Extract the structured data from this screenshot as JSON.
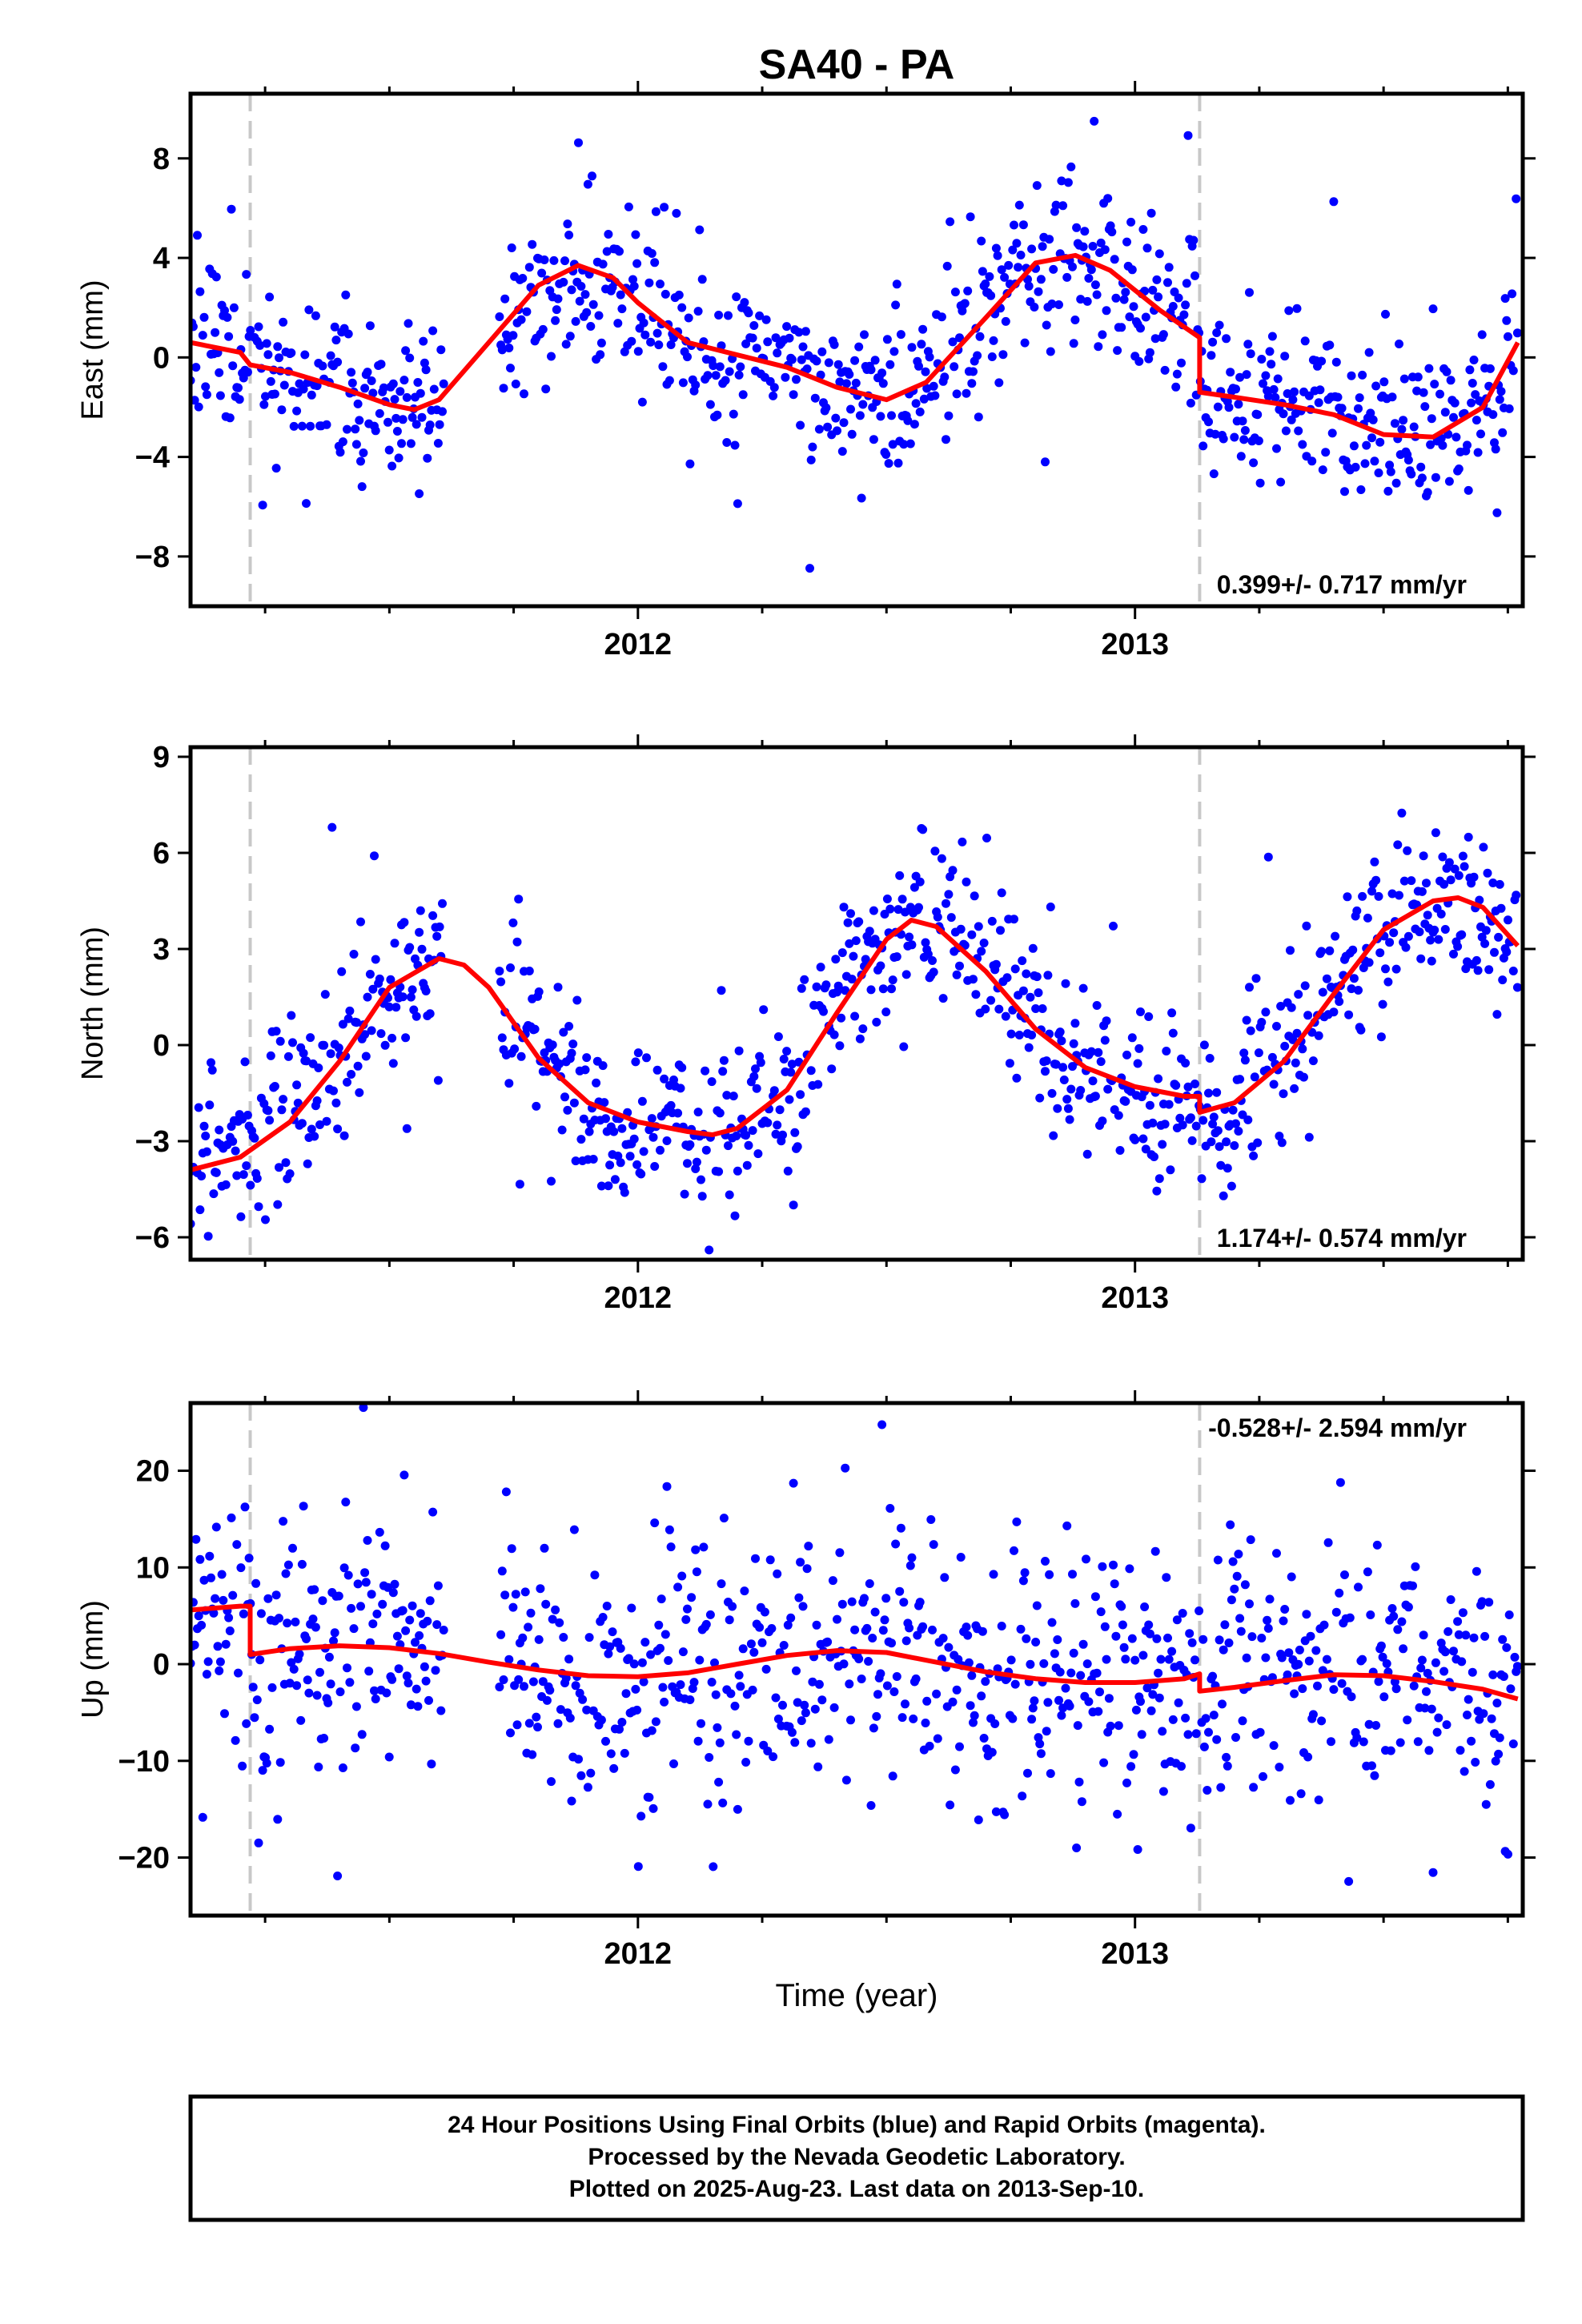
{
  "chart_data": {
    "title": "SA40 - PA",
    "type": "scatter",
    "xlabel": "Time (year)",
    "x_ticks": [
      "2012",
      "2013"
    ],
    "xlim": [
      2011.1,
      2013.78
    ],
    "discontinuities": [
      2011.22,
      2013.13
    ],
    "colors": {
      "data": "#0000ff",
      "model": "#ff0000",
      "discontinuity": "#c8c8c8",
      "frame": "#000000"
    },
    "panels": [
      {
        "ylabel": "East (mm)",
        "ylim": [
          -10,
          10.6
        ],
        "yticks": [
          "8",
          "4",
          "0",
          "−4",
          "−8"
        ],
        "ytick_values": [
          8,
          4,
          0,
          -4,
          -8
        ],
        "rate_text": "0.399+/- 0.717 mm/yr",
        "rate_position": "bottom-right",
        "model": {
          "x": [
            2011.1,
            2011.2,
            2011.22,
            2011.3,
            2011.4,
            2011.5,
            2011.55,
            2011.6,
            2011.7,
            2011.8,
            2011.88,
            2011.95,
            2012.0,
            2012.1,
            2012.2,
            2012.3,
            2012.4,
            2012.5,
            2012.58,
            2012.7,
            2012.8,
            2012.88,
            2012.95,
            2013.05,
            2013.13,
            2013.13,
            2013.2,
            2013.3,
            2013.4,
            2013.5,
            2013.6,
            2013.7,
            2013.77
          ],
          "y": [
            0.6,
            0.2,
            -0.3,
            -0.6,
            -1.2,
            -1.9,
            -2.1,
            -1.7,
            0.6,
            2.9,
            3.7,
            3.2,
            2.2,
            0.6,
            0.1,
            -0.4,
            -1.2,
            -1.7,
            -1.0,
            1.6,
            3.8,
            4.1,
            3.5,
            1.9,
            0.8,
            -1.4,
            -1.6,
            -1.9,
            -2.3,
            -3.1,
            -3.2,
            -2.0,
            0.6
          ]
        },
        "scatter": {
          "seed": 11,
          "noise": 1.6,
          "outlier_rate": 0.05,
          "outlier_scale": 2.4
        }
      },
      {
        "ylabel": "North (mm)",
        "ylim": [
          -6.7,
          9.3
        ],
        "yticks": [
          "9",
          "6",
          "3",
          "0",
          "−3",
          "−6"
        ],
        "ytick_values": [
          9,
          6,
          3,
          0,
          -3,
          -6
        ],
        "rate_text": "1.174+/- 0.574 mm/yr",
        "rate_position": "bottom-right",
        "model": {
          "x": [
            2011.1,
            2011.2,
            2011.3,
            2011.4,
            2011.5,
            2011.6,
            2011.65,
            2011.7,
            2011.8,
            2011.9,
            2012.0,
            2012.1,
            2012.15,
            2012.2,
            2012.3,
            2012.4,
            2012.5,
            2012.55,
            2012.6,
            2012.7,
            2012.8,
            2012.9,
            2013.0,
            2013.1,
            2013.13,
            2013.13,
            2013.2,
            2013.3,
            2013.4,
            2013.5,
            2013.6,
            2013.65,
            2013.7,
            2013.77
          ],
          "y": [
            -3.9,
            -3.5,
            -2.4,
            -0.5,
            1.8,
            2.7,
            2.5,
            1.8,
            -0.4,
            -1.8,
            -2.4,
            -2.7,
            -2.8,
            -2.6,
            -1.4,
            1.0,
            3.3,
            3.9,
            3.7,
            2.3,
            0.5,
            -0.7,
            -1.3,
            -1.6,
            -1.6,
            -2.1,
            -1.8,
            -0.5,
            1.6,
            3.6,
            4.5,
            4.6,
            4.3,
            3.1
          ]
        },
        "scatter": {
          "seed": 23,
          "noise": 1.3,
          "outlier_rate": 0.05,
          "outlier_scale": 2.2
        }
      },
      {
        "ylabel": "Up (mm)",
        "ylim": [
          -26,
          27
        ],
        "yticks": [
          "20",
          "10",
          "0",
          "−10",
          "−20"
        ],
        "ytick_values": [
          20,
          10,
          0,
          -10,
          -20
        ],
        "rate_text": "-0.528+/- 2.594 mm/yr",
        "rate_position": "top-right",
        "model": {
          "x": [
            2011.1,
            2011.2,
            2011.22,
            2011.22,
            2011.3,
            2011.4,
            2011.5,
            2011.6,
            2011.7,
            2011.8,
            2011.9,
            2012.0,
            2012.1,
            2012.2,
            2012.3,
            2012.4,
            2012.5,
            2012.6,
            2012.7,
            2012.8,
            2012.9,
            2013.0,
            2013.1,
            2013.13,
            2013.13,
            2013.2,
            2013.3,
            2013.4,
            2013.5,
            2013.6,
            2013.7,
            2013.77
          ],
          "y": [
            5.6,
            6.0,
            6.0,
            1.0,
            1.6,
            1.9,
            1.7,
            1.1,
            0.2,
            -0.6,
            -1.2,
            -1.3,
            -0.9,
            0.0,
            0.9,
            1.4,
            1.2,
            0.2,
            -0.8,
            -1.5,
            -1.9,
            -1.9,
            -1.5,
            -1.0,
            -2.8,
            -2.4,
            -1.7,
            -1.1,
            -1.2,
            -1.8,
            -2.6,
            -3.6
          ]
        },
        "scatter": {
          "seed": 37,
          "noise": 7.0,
          "outlier_rate": 0.04,
          "outlier_scale": 2.3
        }
      }
    ]
  },
  "footer": {
    "line1": "24 Hour Positions Using Final Orbits (blue) and Rapid Orbits (magenta).",
    "line2": "Processed by the Nevada Geodetic Laboratory.",
    "line3": "Plotted on 2025-Aug-23. Last data on 2013-Sep-10."
  }
}
